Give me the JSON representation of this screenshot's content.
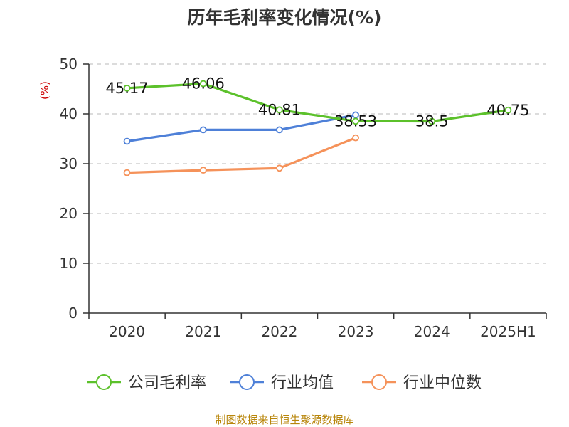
{
  "chart_data": {
    "type": "line",
    "title": "历年毛利率变化情况(%)",
    "ylabel": "(%)",
    "xlabel": "",
    "categories": [
      "2020",
      "2021",
      "2022",
      "2023",
      "2024",
      "2025H1"
    ],
    "ylim": [
      0,
      50
    ],
    "yticks": [
      0,
      10,
      20,
      30,
      40,
      50
    ],
    "grid": true,
    "legend_position": "bottom",
    "series": [
      {
        "name": "公司毛利率",
        "color": "#5cc12b",
        "values": [
          45.17,
          46.06,
          40.81,
          38.53,
          38.5,
          40.75
        ],
        "labels": [
          "45.17",
          "46.06",
          "40.81",
          "38.53",
          "38.5",
          "40.75"
        ]
      },
      {
        "name": "行业均值",
        "color": "#4e80d8",
        "values": [
          34.5,
          36.8,
          36.8,
          39.8,
          null,
          null
        ]
      },
      {
        "name": "行业中位数",
        "color": "#f5925a",
        "values": [
          28.2,
          28.7,
          29.1,
          35.2,
          null,
          null
        ]
      }
    ],
    "source": "制图数据来自恒生聚源数据库"
  }
}
